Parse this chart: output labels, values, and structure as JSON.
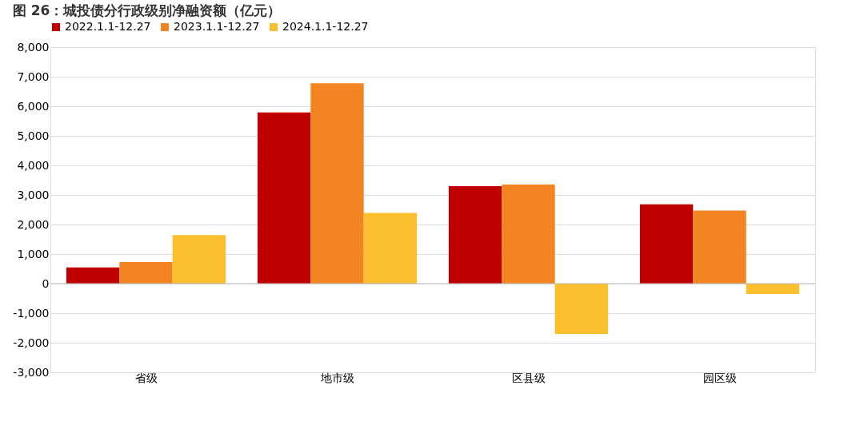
{
  "chart_data": {
    "type": "bar",
    "title": "图 26：城投债分行政级别净融资额（亿元）",
    "categories": [
      "省级",
      "地市级",
      "区县级",
      "园区级"
    ],
    "series": [
      {
        "name": "2022.1.1-12.27",
        "color": "#c00000",
        "values": [
          550,
          5790,
          3300,
          2680
        ]
      },
      {
        "name": "2023.1.1-12.27",
        "color": "#f28522",
        "values": [
          730,
          6780,
          3350,
          2470
        ]
      },
      {
        "name": "2024.1.1-12.27",
        "color": "#fbbf2e",
        "values": [
          1640,
          2390,
          -1700,
          -350
        ]
      }
    ],
    "ylim": [
      -3000,
      8000
    ],
    "yticks": [
      {
        "value": -3000,
        "label": "-3,000"
      },
      {
        "value": -2000,
        "label": "-2,000"
      },
      {
        "value": -1000,
        "label": "-1,000"
      },
      0,
      {
        "value": 1000,
        "label": "1,000"
      },
      {
        "value": 2000,
        "label": "2,000"
      },
      {
        "value": 3000,
        "label": "3,000"
      },
      {
        "value": 4000,
        "label": "4,000"
      },
      {
        "value": 5000,
        "label": "5,000"
      },
      {
        "value": 6000,
        "label": "6,000"
      },
      {
        "value": 7000,
        "label": "7,000"
      },
      {
        "value": 8000,
        "label": "8,000"
      }
    ],
    "grid": "y",
    "legend": "top"
  }
}
